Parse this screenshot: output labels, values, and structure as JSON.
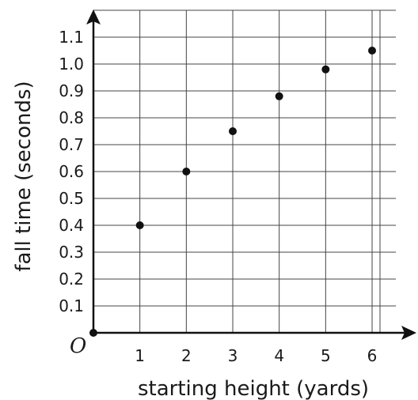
{
  "chart_data": {
    "type": "scatter",
    "xlabel": "starting height (yards)",
    "ylabel": "fall time (seconds)",
    "origin_label": "O",
    "xlim": [
      0,
      7
    ],
    "ylim": [
      0,
      1.2
    ],
    "x_ticks": [
      1,
      2,
      3,
      4,
      5,
      6
    ],
    "y_ticks": [
      0.1,
      0.2,
      0.3,
      0.4,
      0.5,
      0.6,
      0.7,
      0.8,
      0.9,
      1.0,
      1.1
    ],
    "y_tick_labels": [
      "0.1",
      "0.2",
      "0.3",
      "0.4",
      "0.5",
      "0.6",
      "0.7",
      "0.8",
      "0.9",
      "1.0",
      "1.1"
    ],
    "grid": true,
    "points": [
      {
        "x": 0,
        "y": 0
      },
      {
        "x": 1,
        "y": 0.4
      },
      {
        "x": 2,
        "y": 0.6
      },
      {
        "x": 3,
        "y": 0.75
      },
      {
        "x": 4,
        "y": 0.88
      },
      {
        "x": 5,
        "y": 0.98
      },
      {
        "x": 6,
        "y": 1.05
      }
    ],
    "colors": {
      "ink": "#111111",
      "grid": "#444444"
    }
  }
}
